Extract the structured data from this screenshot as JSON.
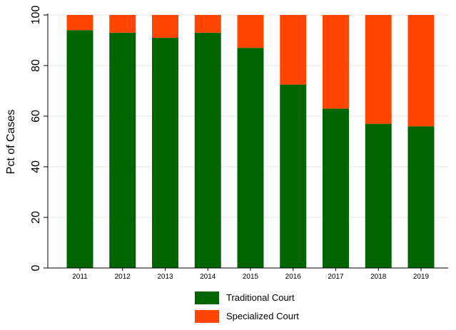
{
  "chart_data": {
    "type": "bar",
    "stacked": true,
    "categories": [
      "2011",
      "2012",
      "2013",
      "2014",
      "2015",
      "2016",
      "2017",
      "2018",
      "2019"
    ],
    "series": [
      {
        "name": "Traditional Court",
        "color": "#006400",
        "values": [
          94,
          93,
          91,
          93,
          87,
          72.5,
          63,
          57,
          56
        ]
      },
      {
        "name": "Specialized Court",
        "color": "#ff4500",
        "values": [
          6,
          7,
          9,
          7,
          13,
          27.5,
          37,
          43,
          44
        ]
      }
    ],
    "title": "",
    "xlabel": "",
    "ylabel": "Pct of Cases",
    "ylim": [
      0,
      100
    ],
    "yticks": [
      "0",
      "20",
      "40",
      "60",
      "80",
      "100"
    ],
    "grid": true,
    "legend_position": "bottom"
  }
}
